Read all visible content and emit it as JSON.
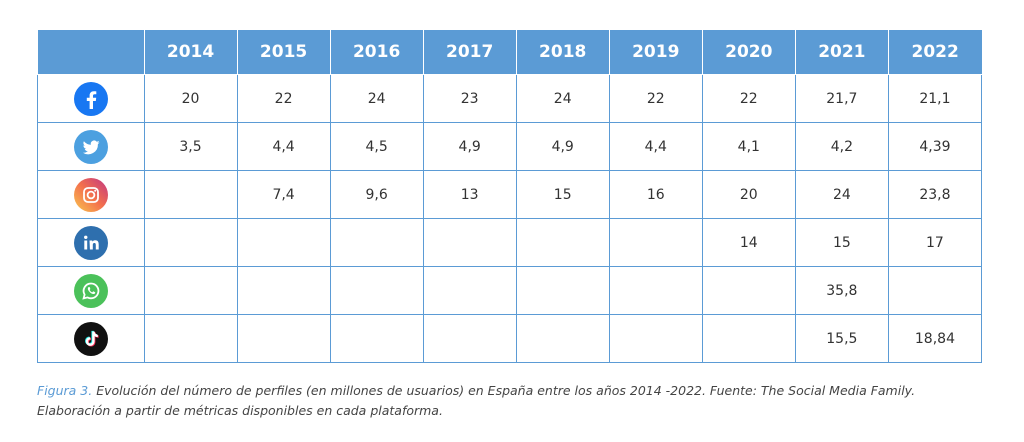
{
  "table": {
    "years": [
      "2014",
      "2015",
      "2016",
      "2017",
      "2018",
      "2019",
      "2020",
      "2021",
      "2022"
    ],
    "rows": [
      {
        "platform_icon": "facebook-icon",
        "color": "#1877f2",
        "values": [
          "20",
          "22",
          "24",
          "23",
          "24",
          "22",
          "22",
          "21,7",
          "21,1"
        ]
      },
      {
        "platform_icon": "twitter-icon",
        "color": "#4ca0e0",
        "values": [
          "3,5",
          "4,4",
          "4,5",
          "4,9",
          "4,9",
          "4,4",
          "4,1",
          "4,2",
          "4,39"
        ]
      },
      {
        "platform_icon": "instagram-icon",
        "color": "#e4405f",
        "values": [
          "",
          "7,4",
          "9,6",
          "13",
          "15",
          "16",
          "20",
          "24",
          "23,8"
        ]
      },
      {
        "platform_icon": "linkedin-icon",
        "color": "#2e6fae",
        "values": [
          "",
          "",
          "",
          "",
          "",
          "",
          "14",
          "15",
          "17"
        ]
      },
      {
        "platform_icon": "whatsapp-icon",
        "color": "#4bc15a",
        "values": [
          "",
          "",
          "",
          "",
          "",
          "",
          "",
          "35,8",
          ""
        ]
      },
      {
        "platform_icon": "tiktok-icon",
        "color": "#111111",
        "values": [
          "",
          "",
          "",
          "",
          "",
          "",
          "",
          "15,5",
          "18,84"
        ]
      }
    ]
  },
  "caption": {
    "label": "Figura 3.",
    "text": " Evolución del número de perfiles (en millones de usuarios) en España entre los años 2014 -2022. Fuente: The Social Media Family. Elaboración a partir de métricas disponibles en cada plataforma."
  },
  "colors": {
    "header_bg": "#5b9bd5",
    "border": "#5b9bd5",
    "caption_label": "#5b9bd5"
  }
}
